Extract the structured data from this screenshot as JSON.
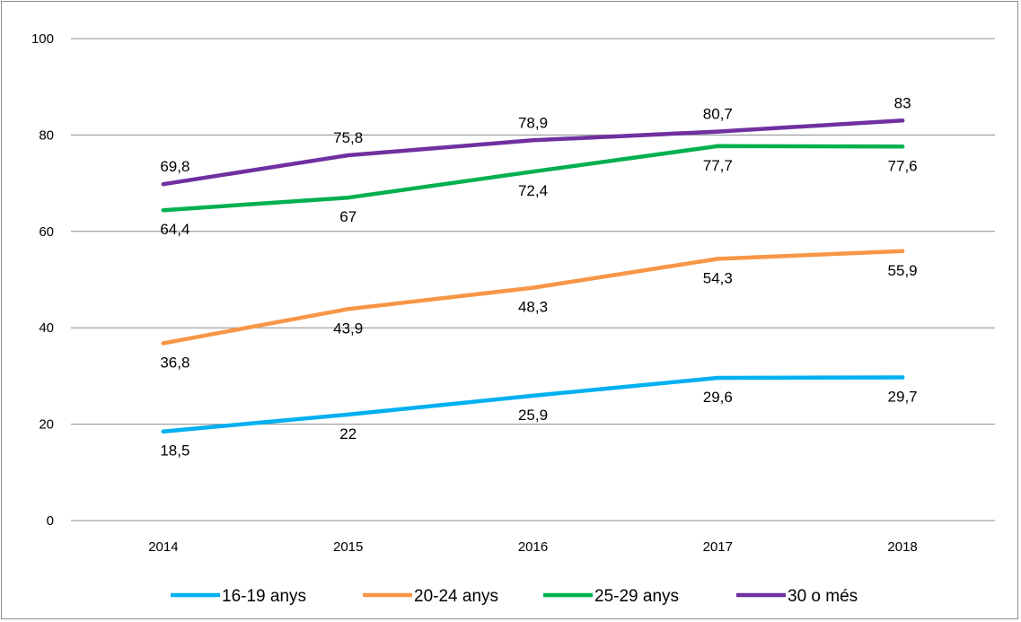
{
  "chart_data": {
    "type": "line",
    "title": "",
    "xlabel": "",
    "ylabel": "",
    "categories": [
      "2014",
      "2015",
      "2016",
      "2017",
      "2018"
    ],
    "ylim": [
      0,
      100
    ],
    "yticks": [
      0,
      20,
      40,
      60,
      80,
      100
    ],
    "grid": "horizontal",
    "legend_position": "bottom",
    "series": [
      {
        "name": "16-19 anys",
        "color": "#00b0f0",
        "values": [
          18.5,
          22,
          25.9,
          29.6,
          29.7
        ],
        "labels": [
          "18,5",
          "22",
          "25,9",
          "29,6",
          "29,7"
        ],
        "label_position": "below"
      },
      {
        "name": "20-24 anys",
        "color": "#f79646",
        "values": [
          36.8,
          43.9,
          48.3,
          54.3,
          55.9
        ],
        "labels": [
          "36,8",
          "43,9",
          "48,3",
          "54,3",
          "55,9"
        ],
        "label_position": "below"
      },
      {
        "name": "25-29 anys",
        "color": "#00b050",
        "values": [
          64.4,
          67,
          72.4,
          77.7,
          77.6
        ],
        "labels": [
          "64,4",
          "67",
          "72,4",
          "77,7",
          "77,6"
        ],
        "label_position": "below"
      },
      {
        "name": "30 o més",
        "color": "#7030a0",
        "values": [
          69.8,
          75.8,
          78.9,
          80.7,
          83
        ],
        "labels": [
          "69,8",
          "75,8",
          "78,9",
          "80,7",
          "83"
        ],
        "label_position": "above"
      }
    ]
  }
}
